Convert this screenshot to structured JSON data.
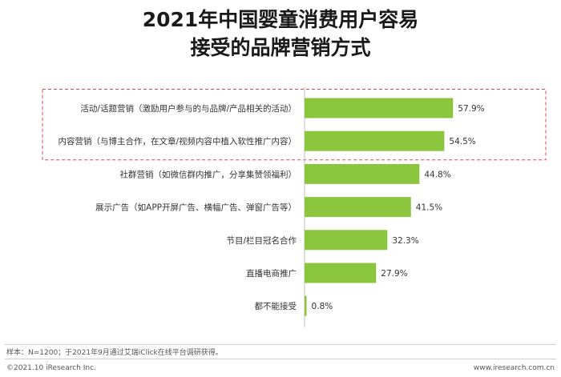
{
  "title_lines": [
    "2021年中国婴童消费用户容易",
    "接受的品牌营销方式"
  ],
  "chart_data": {
    "type": "bar",
    "orientation": "horizontal",
    "title": "2021年中国婴童消费用户容易接受的品牌营销方式",
    "categories": [
      "活动/话题营销（激励用户参与的与品牌/产品相关的活动）",
      "内容营销（与博主合作，在文章/视频内容中植入软性推广内容）",
      "社群营销（如微信群内推广，分享集赞领福利）",
      "展示广告（如APP开屏广告、横幅广告、弹窗广告等）",
      "节目/栏目冠名合作",
      "直播电商推广",
      "都不能接受"
    ],
    "values": [
      57.9,
      54.5,
      44.8,
      41.5,
      32.3,
      27.9,
      0.8
    ],
    "value_labels": [
      "57.9%",
      "54.5%",
      "44.8%",
      "41.5%",
      "32.3%",
      "27.9%",
      "0.8%"
    ],
    "unit": "%",
    "xlim": [
      0,
      100
    ],
    "bar_color": "#8cc63f",
    "highlight_color": "#e0454f",
    "highlighted_indices": [
      0,
      1
    ],
    "grid": false
  },
  "footer": {
    "sample_note": "样本：N=1200；于2021年9月通过艾瑞iClick在线平台调研获得。",
    "copyright": "©2021.10 iResearch Inc.",
    "website": "www.iresearch.com.cn"
  }
}
